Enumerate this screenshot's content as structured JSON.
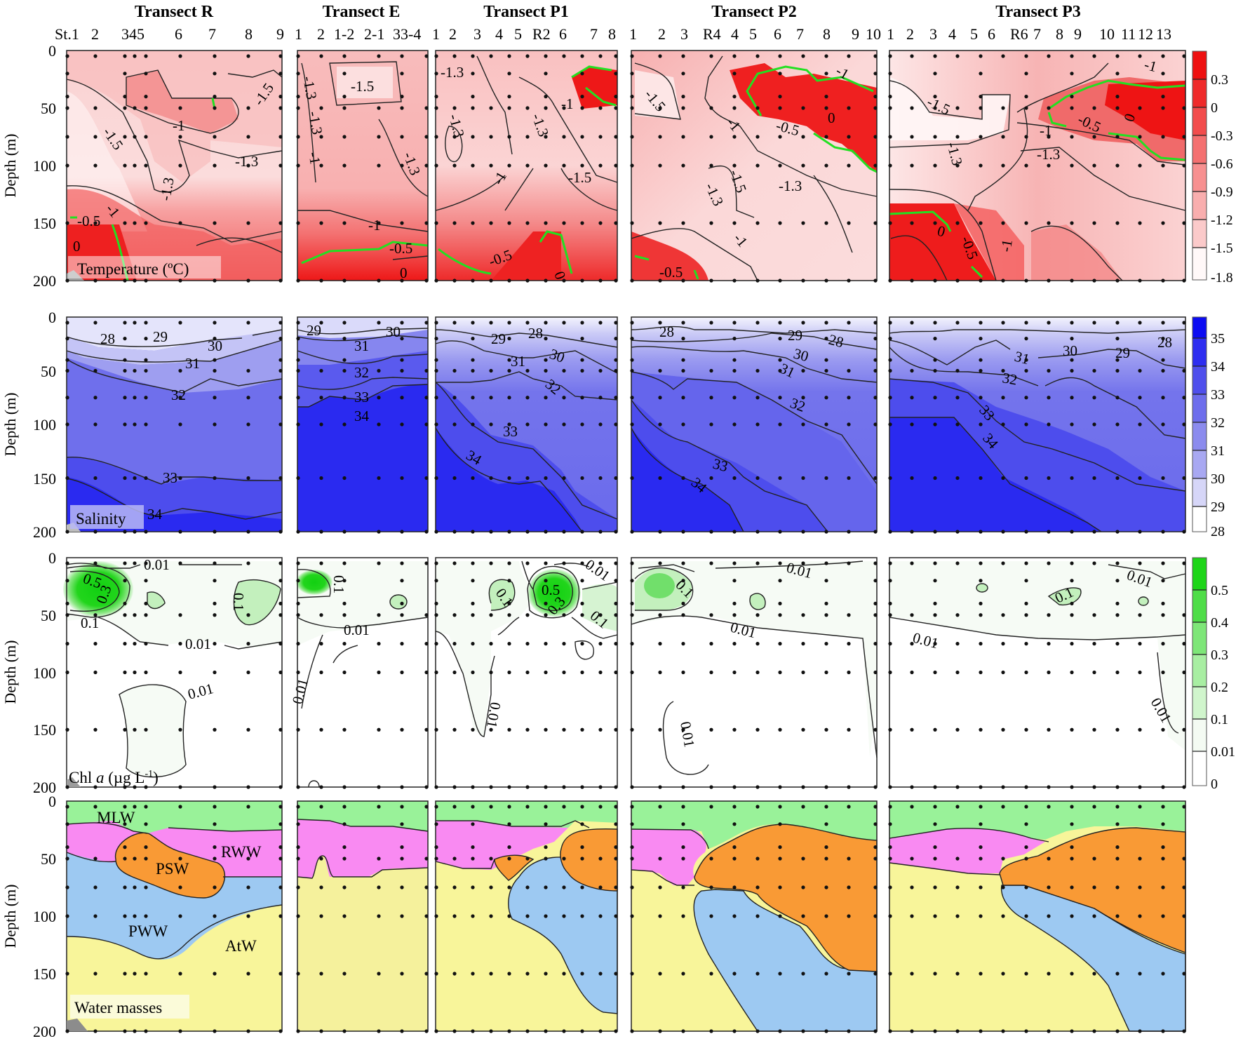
{
  "figure": {
    "transects": [
      {
        "id": "R",
        "title": "Transect R",
        "stations": [
          "St.1",
          "2",
          "345",
          "6",
          "7",
          "8",
          "9"
        ]
      },
      {
        "id": "E",
        "title": "Transect E",
        "stations": [
          "1",
          "2",
          "1-2",
          "2-1",
          "33-4"
        ]
      },
      {
        "id": "P1",
        "title": "Transect P1",
        "stations": [
          "1",
          "2",
          "3",
          "4",
          "5",
          "R2",
          "6",
          "7",
          "8"
        ]
      },
      {
        "id": "P2",
        "title": "Transect P2",
        "stations": [
          "1",
          "2",
          "3",
          "R4",
          "4",
          "5",
          "6",
          "7",
          "8",
          "9",
          "10"
        ]
      },
      {
        "id": "P3",
        "title": "Transect P3",
        "stations": [
          "1",
          "2",
          "3",
          "4",
          "5",
          "6",
          "R6",
          "7",
          "8",
          "9",
          "10",
          "11",
          "12",
          "13"
        ]
      }
    ],
    "y_axis_label": "Depth (m)",
    "y_ticks": [
      "0",
      "50",
      "100",
      "150",
      "200"
    ],
    "rows": [
      {
        "id": "temperature",
        "tag": "Temperature (ºC)"
      },
      {
        "id": "salinity",
        "tag": "Salinity"
      },
      {
        "id": "chl",
        "tag_main": "Chl ",
        "tag_italic": "a",
        "tag_unit": " (µg L",
        "tag_sup": "-1",
        "tag_close": ")"
      },
      {
        "id": "water_masses",
        "tag": "Water masses"
      }
    ]
  },
  "chart_data": [
    {
      "type": "heatmap",
      "title": "Temperature (ºC)",
      "ylabel": "Depth (m)",
      "ylim": [
        200,
        0
      ],
      "yticks": [
        0,
        50,
        100,
        150,
        200
      ],
      "panels": [
        "Transect R",
        "Transect E",
        "Transect P1",
        "Transect P2",
        "Transect P3"
      ],
      "colorbar": {
        "ticks": [
          "0.3",
          "0",
          "-0.3",
          "-0.6",
          "-0.9",
          "-1.2",
          "-1.5",
          "-1.8"
        ],
        "range": [
          -1.8,
          0.5
        ],
        "colors": [
          "#ffffff",
          "#fde6e6",
          "#fbcaca",
          "#f9aeae",
          "#f79090",
          "#f47070",
          "#f24c4c",
          "#ef2a2a",
          "#ee1010"
        ]
      },
      "contour_labels": {
        "Transect R": [
          "-1.5",
          "-1",
          "-1.3",
          "-1.5",
          "-1.3",
          "-1",
          "-0.5",
          "0"
        ],
        "Transect E": [
          "-1.3",
          "-1.5",
          "-1.3",
          "-1",
          "-1.3",
          "-1",
          "-0.5",
          "0"
        ],
        "Transect P1": [
          "-1.3",
          "-1.3",
          "-1.3",
          "-1.5",
          "-1",
          "-1",
          "-0.5",
          "0"
        ],
        "Transect P2": [
          "-1.5",
          "-1",
          "-0.5",
          "0",
          "-1",
          "-1.3",
          "-1.5",
          "-1.3",
          "-1",
          "-0.5"
        ],
        "Transect P3": [
          "-1.5",
          "-1.3",
          "-1",
          "-1.3",
          "-0.5",
          "0",
          "-1",
          "0",
          "-0.5",
          "-1"
        ]
      },
      "highlight_isotherm": "-0.5 (green)"
    },
    {
      "type": "heatmap",
      "title": "Salinity",
      "ylabel": "Depth (m)",
      "ylim": [
        200,
        0
      ],
      "yticks": [
        0,
        50,
        100,
        150,
        200
      ],
      "panels": [
        "Transect R",
        "Transect E",
        "Transect P1",
        "Transect P2",
        "Transect P3"
      ],
      "colorbar": {
        "ticks": [
          "35",
          "34",
          "33",
          "32",
          "31",
          "30",
          "29",
          "28"
        ],
        "range": [
          28,
          35.5
        ],
        "colors": [
          "#ffffff",
          "#e6e6fb",
          "#c9c9f6",
          "#a8a8f2",
          "#8b8bee",
          "#6d6dec",
          "#4f4fec",
          "#2d2df0",
          "#0b0bf2"
        ]
      },
      "contour_labels": {
        "Transect R": [
          "28",
          "29",
          "30",
          "31",
          "32",
          "33",
          "34"
        ],
        "Transect E": [
          "29",
          "30",
          "31",
          "32",
          "33",
          "34"
        ],
        "Transect P1": [
          "29",
          "28",
          "30",
          "31",
          "32",
          "33",
          "34"
        ],
        "Transect P2": [
          "28",
          "29",
          "28",
          "30",
          "31",
          "32",
          "33",
          "34"
        ],
        "Transect P3": [
          "31",
          "30",
          "29",
          "28",
          "32",
          "33",
          "34"
        ]
      }
    },
    {
      "type": "heatmap",
      "title": "Chl a (µg L-1)",
      "ylabel": "Depth (m)",
      "ylim": [
        200,
        0
      ],
      "yticks": [
        0,
        50,
        100,
        150,
        200
      ],
      "panels": [
        "Transect R",
        "Transect E",
        "Transect P1",
        "Transect P2",
        "Transect P3"
      ],
      "colorbar": {
        "ticks": [
          "0.5",
          "0.4",
          "0.3",
          "0.2",
          "0.1",
          "0.01",
          "0"
        ],
        "range": [
          0,
          0.6
        ],
        "colors": [
          "#ffffff",
          "#f4fbf3",
          "#d0f5cc",
          "#a8eea2",
          "#7ee678",
          "#4fdd48",
          "#1ed518"
        ]
      },
      "contour_labels": {
        "Transect R": [
          "0.01",
          "0.5",
          "0.3",
          "0.1",
          "0.1",
          "0.01",
          "0.01"
        ],
        "Transect E": [
          "0.1",
          "0.01",
          "0.01"
        ],
        "Transect P1": [
          "0.1",
          "0.5",
          "0.3",
          "0.01",
          "0.1",
          "0.01"
        ],
        "Transect P2": [
          "0.1",
          "0.01",
          "0.01",
          "0.01"
        ],
        "Transect P3": [
          "0.01",
          "0.1",
          "0.01",
          "0.01"
        ]
      }
    },
    {
      "type": "area",
      "title": "Water masses",
      "ylabel": "Depth (m)",
      "ylim": [
        200,
        0
      ],
      "yticks": [
        0,
        50,
        100,
        150,
        200
      ],
      "panels": [
        "Transect R",
        "Transect E",
        "Transect P1",
        "Transect P2",
        "Transect P3"
      ],
      "legend": [
        {
          "name": "MLW",
          "color": "#99f299"
        },
        {
          "name": "RWW",
          "color": "#f98af2"
        },
        {
          "name": "PSW",
          "color": "#f99a35"
        },
        {
          "name": "PWW",
          "color": "#9dc9f2"
        },
        {
          "name": "AtW",
          "color": "#f8f59a"
        }
      ],
      "labels_on_panel_R": [
        "MLW",
        "RWW",
        "PSW",
        "PWW",
        "AtW"
      ]
    }
  ]
}
